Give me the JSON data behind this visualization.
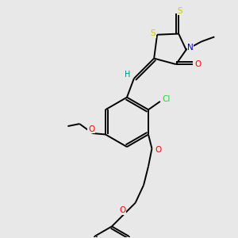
{
  "background_color": "#e8e8e8",
  "fig_width": 3.0,
  "fig_height": 3.0,
  "dpi": 100,
  "atom_colors": {
    "S": "#cccc00",
    "N": "#0000cc",
    "O": "#ff0000",
    "Cl": "#33cc33",
    "H": "#008888"
  },
  "bond_color": "#000000",
  "bond_width": 1.4
}
